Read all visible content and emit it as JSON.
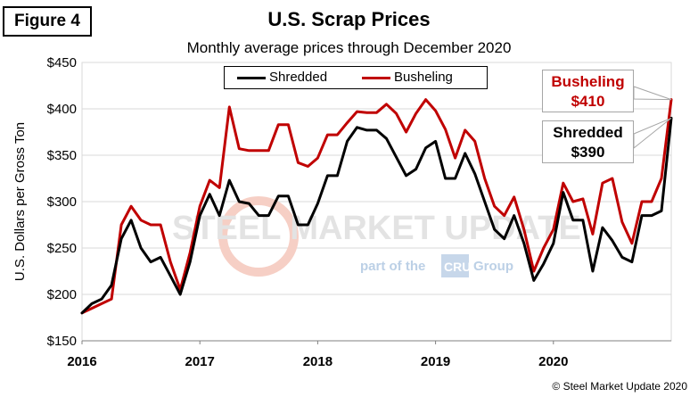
{
  "figure_label": "Figure 4",
  "colors": {
    "shredded": "#000000",
    "busheling": "#c00000",
    "grid": "#d9d9d9",
    "watermark": "#e6e6e6"
  },
  "watermark": {
    "line1": "STEEL MARKET UPDATE",
    "line2_prefix": "part of the",
    "line2_logo": "CRU",
    "line2_suffix": "Group"
  },
  "callouts": {
    "busheling": {
      "name": "Busheling",
      "value": "$410"
    },
    "shredded": {
      "name": "Shredded",
      "value": "$390"
    }
  },
  "copyright": "© Steel Market Update 2020",
  "chart_data": {
    "type": "line",
    "title": "U.S. Scrap Prices",
    "subtitle": "Monthly average prices through December 2020",
    "ylabel": "U.S. Dollars per Gross Ton",
    "xlabel": "",
    "ylim": [
      150,
      450
    ],
    "yticks": [
      150,
      200,
      250,
      300,
      350,
      400,
      450
    ],
    "ytick_labels": [
      "$150",
      "$200",
      "$250",
      "$300",
      "$350",
      "$400",
      "$450"
    ],
    "x_tick_labels": [
      "2016",
      "2017",
      "2018",
      "2019",
      "2020"
    ],
    "x_period": "monthly, Jan 2016 - Dec 2020",
    "grid": true,
    "legend": "top-center",
    "series": [
      {
        "name": "Shredded",
        "values": [
          180,
          190,
          195,
          210,
          260,
          280,
          250,
          235,
          240,
          220,
          200,
          235,
          285,
          308,
          285,
          323,
          300,
          298,
          285,
          285,
          306,
          306,
          275,
          275,
          298,
          328,
          328,
          365,
          380,
          377,
          377,
          368,
          348,
          328,
          335,
          358,
          365,
          325,
          325,
          352,
          330,
          300,
          270,
          260,
          285,
          255,
          215,
          233,
          255,
          310,
          280,
          280,
          225,
          272,
          258,
          240,
          235,
          285,
          285,
          290,
          390
        ]
      },
      {
        "name": "Busheling",
        "values": [
          180,
          185,
          190,
          195,
          275,
          295,
          280,
          275,
          275,
          235,
          205,
          245,
          295,
          323,
          315,
          402,
          357,
          355,
          355,
          355,
          383,
          383,
          342,
          338,
          347,
          372,
          372,
          385,
          397,
          396,
          396,
          405,
          395,
          375,
          395,
          410,
          398,
          378,
          347,
          377,
          365,
          325,
          295,
          285,
          305,
          270,
          225,
          250,
          270,
          320,
          300,
          303,
          265,
          320,
          325,
          278,
          255,
          300,
          300,
          325,
          410
        ]
      }
    ]
  }
}
